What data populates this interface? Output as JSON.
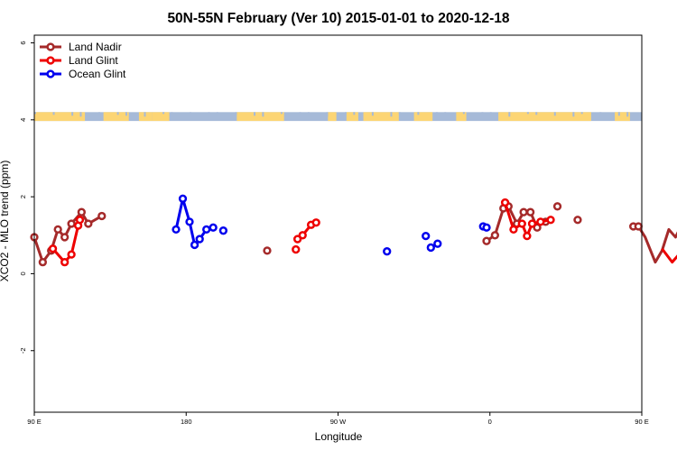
{
  "chart_data": {
    "type": "line",
    "title": "50N-55N February (Ver 10)   2015-01-01 to 2020-12-18",
    "xlabel": "Longitude",
    "ylabel": "XCO2 - MLO trend (ppm)",
    "xlim": [
      90,
      450
    ],
    "ylim": [
      -3.6,
      6.2
    ],
    "x_ticks": [
      {
        "value": 90,
        "label": "90 E"
      },
      {
        "value": 180,
        "label": "180"
      },
      {
        "value": 270,
        "label": "90 W"
      },
      {
        "value": 360,
        "label": "0"
      },
      {
        "value": 450,
        "label": "90 E"
      },
      {
        "value": 540,
        "label": "180"
      }
    ],
    "y_ticks": [
      {
        "value": -2,
        "label": "-2"
      },
      {
        "value": 0,
        "label": "0"
      },
      {
        "value": 2,
        "label": "2"
      },
      {
        "value": 4,
        "label": "4"
      },
      {
        "value": 6,
        "label": "6"
      }
    ],
    "grid": false,
    "legend_position": "top-left",
    "land_ocean_strip": {
      "y_top": 4.2,
      "y_bottom": 3.97,
      "land_color": "#fcd574",
      "ocean_color": "#a6bad8"
    },
    "series": [
      {
        "name": "Land Nadir",
        "color": "#a52a2a",
        "points": [
          [
            90,
            0.95
          ],
          [
            95,
            0.3
          ],
          [
            100,
            0.6
          ],
          [
            104,
            1.15
          ],
          [
            108,
            0.95
          ],
          [
            112,
            1.3
          ],
          [
            118,
            1.6
          ],
          [
            122,
            1.3
          ],
          [
            130,
            1.5
          ],
          [
            228,
            0.6
          ],
          [
            358,
            0.85
          ],
          [
            363,
            1.0
          ],
          [
            368,
            1.7
          ],
          [
            371,
            1.75
          ],
          [
            376,
            1.3
          ],
          [
            380,
            1.6
          ],
          [
            384,
            1.6
          ],
          [
            388,
            1.2
          ],
          [
            393,
            1.35
          ],
          [
            400,
            1.75
          ],
          [
            412,
            1.4
          ],
          [
            445,
            1.23
          ],
          [
            448,
            1.23
          ],
          [
            452,
            0.95
          ],
          [
            458,
            0.3
          ],
          [
            462,
            0.6
          ],
          [
            466,
            1.15
          ],
          [
            470,
            0.95
          ],
          [
            474,
            1.3
          ],
          [
            480,
            1.6
          ],
          [
            484,
            1.3
          ],
          [
            492,
            1.5
          ]
        ],
        "segments": [
          [
            0,
            8
          ],
          [
            10,
            17
          ],
          [
            21,
            28
          ]
        ]
      },
      {
        "name": "Land Glint",
        "color": "#ee0000",
        "points": [
          [
            101,
            0.65
          ],
          [
            108,
            0.3
          ],
          [
            112,
            0.5
          ],
          [
            116,
            1.25
          ],
          [
            117,
            1.4
          ],
          [
            245,
            0.63
          ],
          [
            246,
            0.9
          ],
          [
            249,
            1.0
          ],
          [
            254,
            1.27
          ],
          [
            257,
            1.33
          ],
          [
            369,
            1.85
          ],
          [
            374,
            1.15
          ],
          [
            379,
            1.3
          ],
          [
            382,
            0.98
          ],
          [
            385,
            1.3
          ],
          [
            390,
            1.35
          ],
          [
            396,
            1.4
          ],
          [
            462,
            0.65
          ],
          [
            468,
            0.3
          ],
          [
            472,
            0.5
          ],
          [
            475,
            1.25
          ],
          [
            476,
            1.4
          ]
        ],
        "segments": [
          [
            0,
            4
          ],
          [
            6,
            9
          ],
          [
            10,
            16
          ],
          [
            17,
            21
          ]
        ]
      },
      {
        "name": "Ocean Glint",
        "color": "#0000ee",
        "points": [
          [
            174,
            1.15
          ],
          [
            178,
            1.95
          ],
          [
            182,
            1.35
          ],
          [
            185,
            0.75
          ],
          [
            188,
            0.9
          ],
          [
            192,
            1.15
          ],
          [
            196,
            1.2
          ],
          [
            202,
            1.12
          ],
          [
            299,
            0.58
          ],
          [
            322,
            0.98
          ],
          [
            325,
            0.68
          ],
          [
            329,
            0.78
          ],
          [
            356,
            1.23
          ],
          [
            358,
            1.2
          ]
        ],
        "segments": [
          [
            0,
            6
          ]
        ]
      }
    ]
  }
}
